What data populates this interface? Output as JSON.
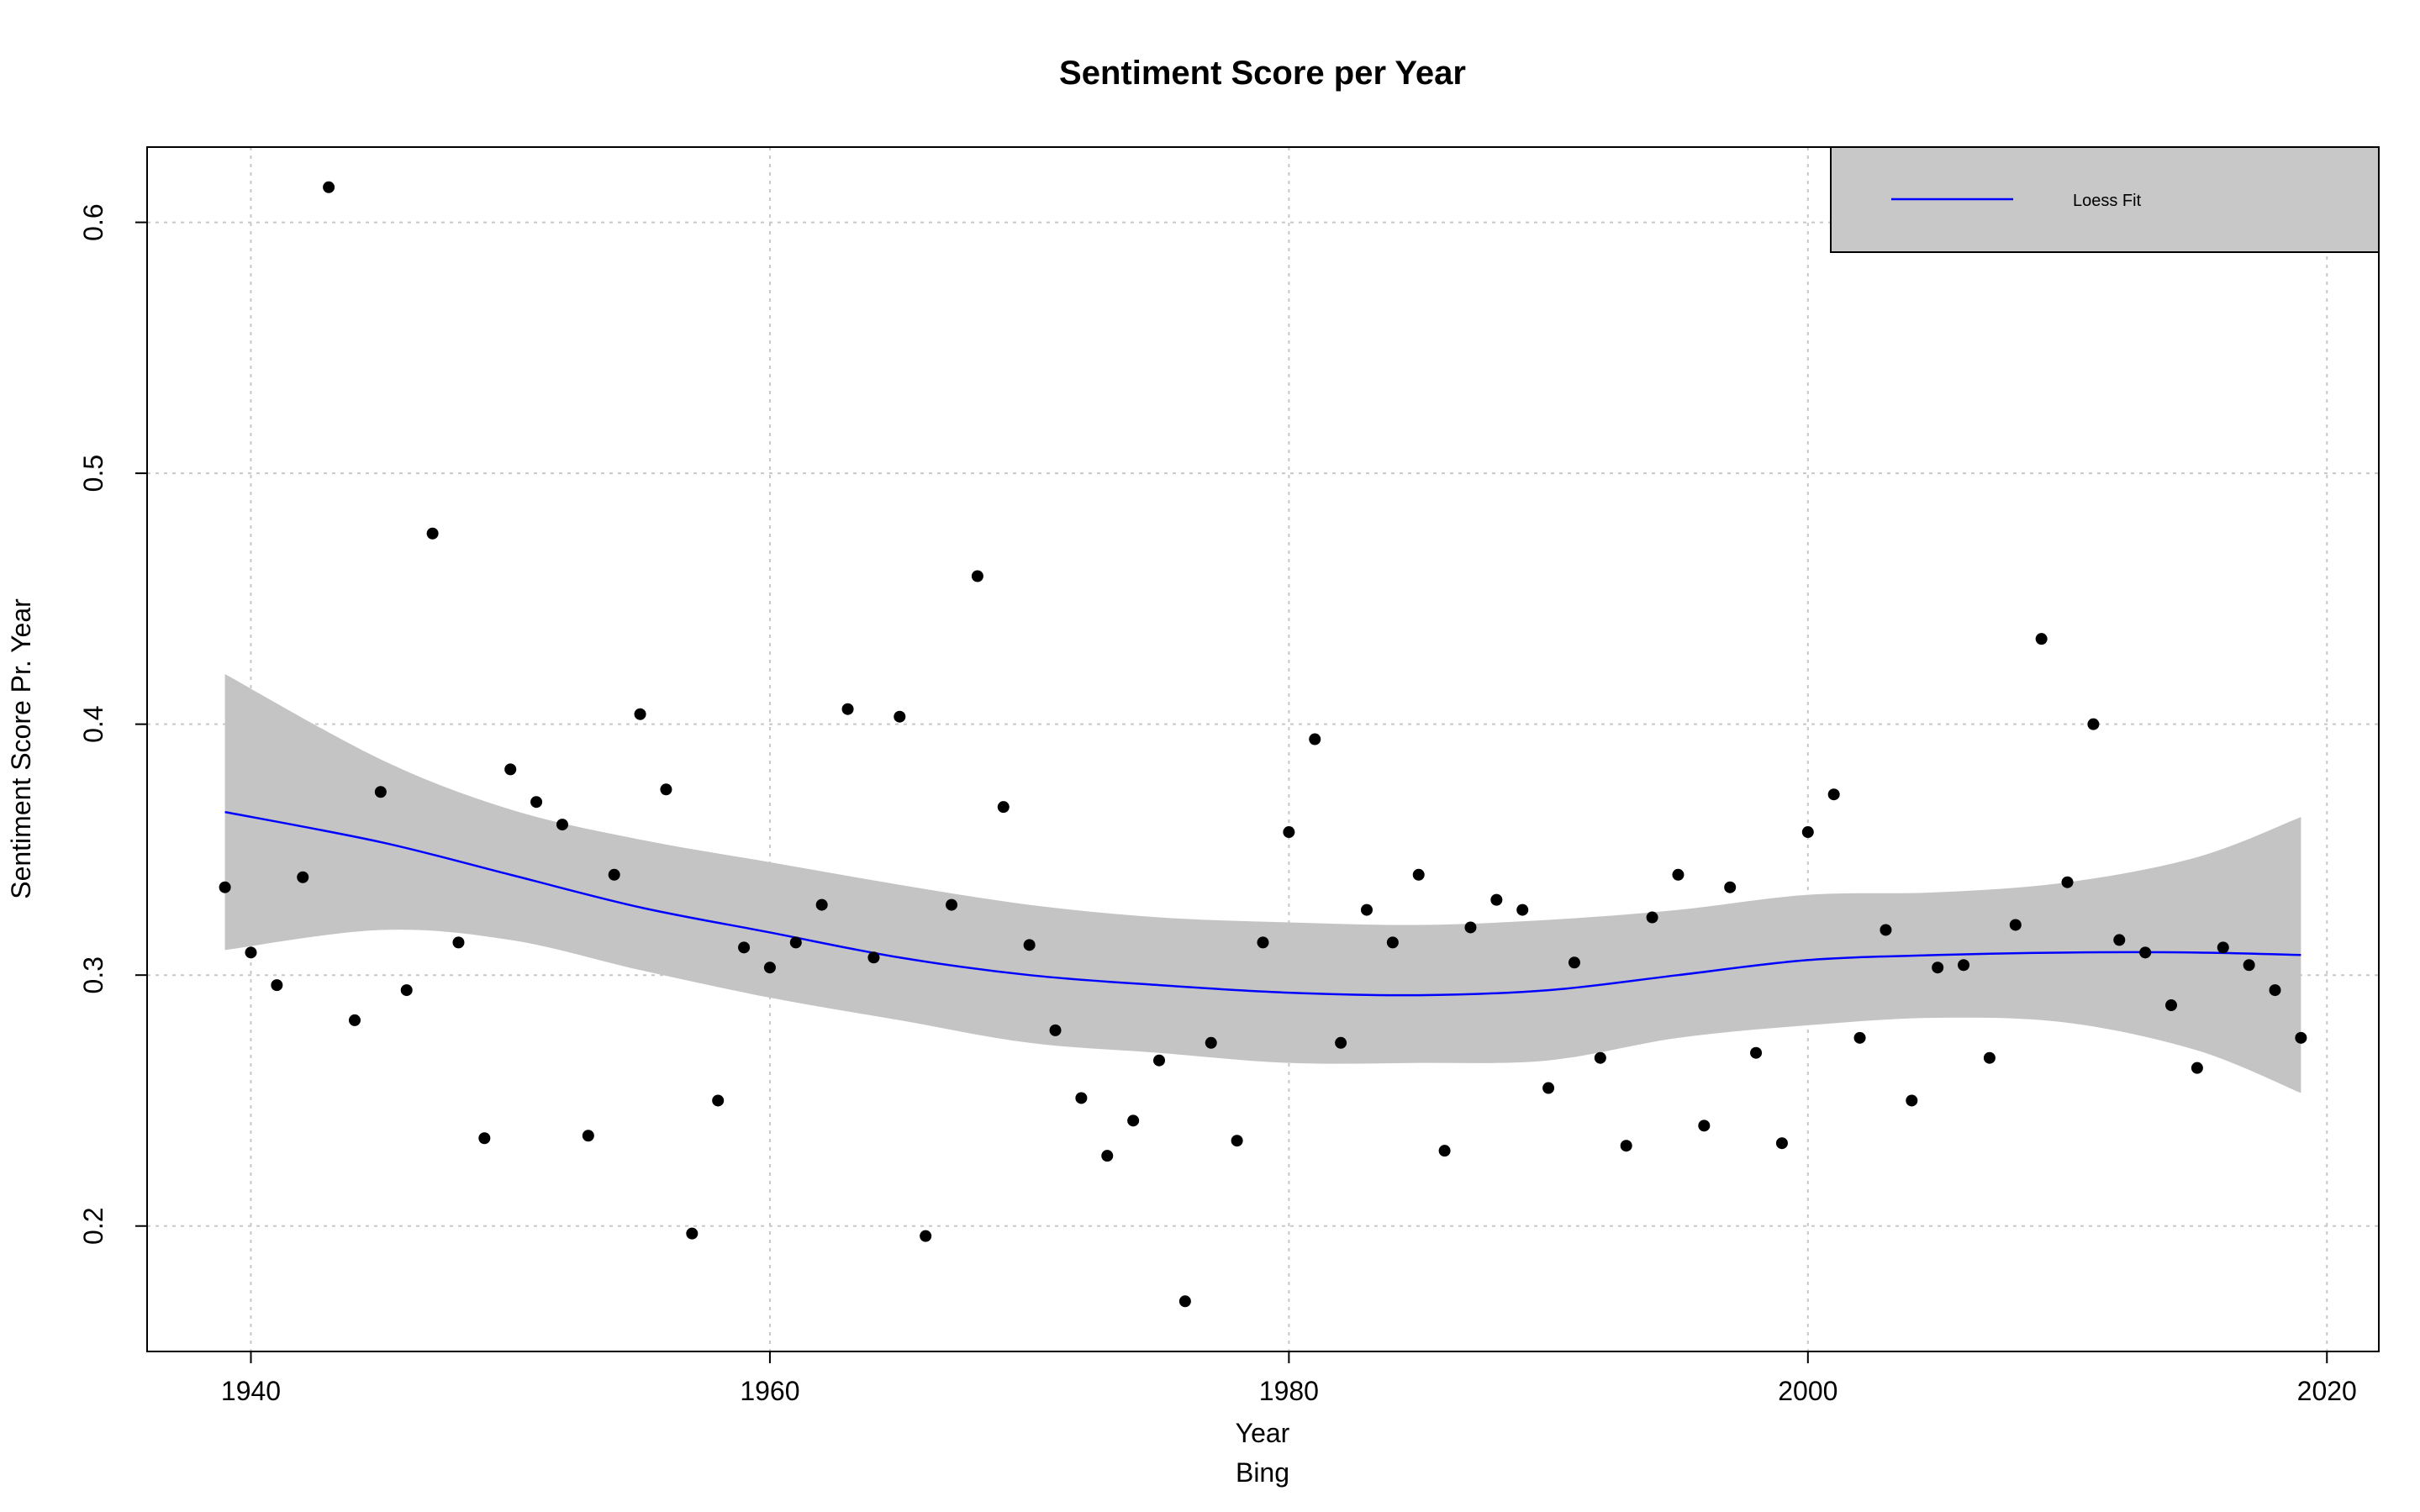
{
  "chart_data": {
    "type": "scatter",
    "title": "Sentiment Score per Year",
    "xlabel": "Year",
    "subtitle": "Bing",
    "ylabel": "Sentiment Score Pr. Year",
    "xlim": [
      1936,
      2022
    ],
    "ylim": [
      0.15,
      0.63
    ],
    "x_ticks": [
      1940,
      1960,
      1980,
      2000,
      2020
    ],
    "y_ticks": [
      0.2,
      0.3,
      0.4,
      0.5,
      0.6
    ],
    "y_tick_labels": [
      "0.2",
      "0.3",
      "0.4",
      "0.5",
      "0.6"
    ],
    "grid": true,
    "legend": {
      "placement": "top-right",
      "entries": [
        {
          "label": "Loess Fit",
          "color": "#0000ff"
        }
      ],
      "background": "#c8c8c8"
    },
    "colors": {
      "points": "#000000",
      "loess_line": "#0000ff",
      "confidence_band": "#c4c4c4",
      "grid": "#c8c8c8"
    },
    "points": {
      "x": [
        1939,
        1940,
        1941,
        1942,
        1943,
        1944,
        1945,
        1946,
        1947,
        1948,
        1949,
        1950,
        1951,
        1952,
        1953,
        1954,
        1955,
        1956,
        1957,
        1958,
        1959,
        1960,
        1961,
        1962,
        1963,
        1964,
        1965,
        1966,
        1967,
        1968,
        1969,
        1970,
        1971,
        1972,
        1973,
        1974,
        1975,
        1976,
        1977,
        1978,
        1979,
        1980,
        1981,
        1982,
        1983,
        1984,
        1985,
        1986,
        1987,
        1988,
        1989,
        1990,
        1991,
        1992,
        1993,
        1994,
        1995,
        1996,
        1997,
        1998,
        1999,
        2000,
        2001,
        2002,
        2003,
        2004,
        2005,
        2006,
        2007,
        2008,
        2009,
        2010,
        2011,
        2012,
        2013,
        2014,
        2015,
        2016,
        2017,
        2018,
        2019
      ],
      "y": [
        0.335,
        0.309,
        0.296,
        0.339,
        0.614,
        0.282,
        0.373,
        0.294,
        0.476,
        0.313,
        0.235,
        0.382,
        0.369,
        0.36,
        0.236,
        0.34,
        0.404,
        0.374,
        0.197,
        0.25,
        0.311,
        0.303,
        0.313,
        0.328,
        0.406,
        0.307,
        0.403,
        0.196,
        0.328,
        0.459,
        0.367,
        0.312,
        0.278,
        0.251,
        0.228,
        0.242,
        0.266,
        0.17,
        0.273,
        0.234,
        0.313,
        0.357,
        0.394,
        0.273,
        0.326,
        0.313,
        0.34,
        0.23,
        0.319,
        0.33,
        0.326,
        0.255,
        0.305,
        0.267,
        0.232,
        0.323,
        0.34,
        0.24,
        0.335,
        0.269,
        0.233,
        0.357,
        0.372,
        0.275,
        0.318,
        0.25,
        0.303,
        0.304,
        0.267,
        0.32,
        0.434,
        0.337,
        0.4,
        0.314,
        0.309,
        0.288,
        0.263,
        0.311,
        0.304,
        0.294,
        0.275
      ]
    },
    "series": [
      {
        "name": "Loess Fit",
        "x": [
          1939,
          1945,
          1950,
          1955,
          1960,
          1965,
          1970,
          1975,
          1980,
          1985,
          1990,
          1995,
          2000,
          2005,
          2010,
          2015,
          2019
        ],
        "y": [
          0.365,
          0.353,
          0.34,
          0.327,
          0.317,
          0.307,
          0.3,
          0.296,
          0.293,
          0.292,
          0.294,
          0.3,
          0.306,
          0.308,
          0.309,
          0.309,
          0.308
        ]
      }
    ],
    "confidence_band": {
      "x": [
        1939,
        1945,
        1950,
        1955,
        1960,
        1965,
        1970,
        1975,
        1980,
        1985,
        1990,
        1995,
        2000,
        2005,
        2010,
        2015,
        2019
      ],
      "upper": [
        0.42,
        0.386,
        0.366,
        0.354,
        0.345,
        0.336,
        0.328,
        0.323,
        0.321,
        0.32,
        0.322,
        0.326,
        0.332,
        0.333,
        0.337,
        0.347,
        0.363
      ],
      "lower": [
        0.31,
        0.318,
        0.314,
        0.302,
        0.291,
        0.282,
        0.273,
        0.269,
        0.265,
        0.265,
        0.266,
        0.275,
        0.28,
        0.283,
        0.281,
        0.27,
        0.253
      ]
    }
  }
}
